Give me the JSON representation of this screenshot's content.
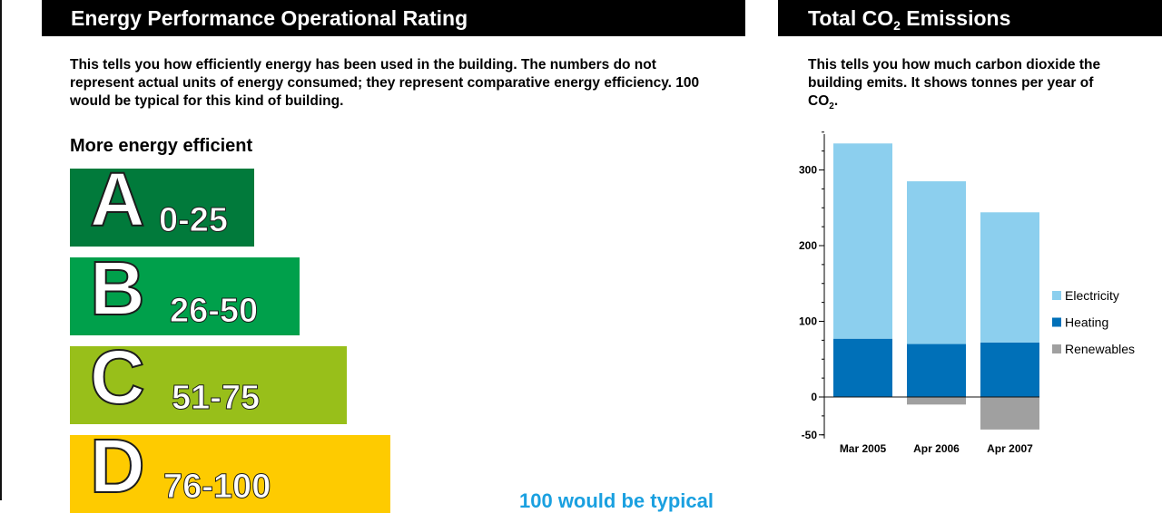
{
  "rating_panel": {
    "title": "Energy Performance Operational Rating",
    "description": "This tells you how efficiently energy has been used in the building. The numbers do not represent actual units of energy consumed; they represent comparative energy efficiency. 100 would be typical for this kind of building.",
    "more_efficient_label": "More energy efficient",
    "bands": [
      {
        "letter": "A",
        "range": "0-25",
        "color": "#017a3b"
      },
      {
        "letter": "B",
        "range": "26-50",
        "color": "#00a04b"
      },
      {
        "letter": "C",
        "range": "51-75",
        "color": "#98bf1a"
      },
      {
        "letter": "D",
        "range": "76-100",
        "color": "#fecb00"
      }
    ],
    "typical_note": "100 would be typical"
  },
  "emissions_panel": {
    "title_main": "Total CO",
    "title_sub": "2",
    "title_end": " Emissions",
    "description_main": "This tells you how much carbon dioxide the building emits. It shows tonnes per year of CO",
    "description_sub": "2",
    "description_end": "."
  },
  "chart_data": {
    "type": "bar",
    "stacked": true,
    "categories": [
      "Mar 2005",
      "Apr 2006",
      "Apr 2007"
    ],
    "series": [
      {
        "name": "Heating",
        "color": "#0070b8",
        "values": [
          77,
          70,
          72
        ]
      },
      {
        "name": "Electricity",
        "color": "#8ccfee",
        "values": [
          258,
          215,
          172
        ]
      },
      {
        "name": "Renewables",
        "color": "#a0a0a0",
        "values": [
          0,
          -10,
          -43
        ]
      }
    ],
    "legend_order": [
      "Electricity",
      "Heating",
      "Renewables"
    ],
    "legend_position": "right",
    "yticks": [
      300,
      200,
      100,
      0,
      -50
    ],
    "ylim": [
      -50,
      350
    ],
    "grid": false
  }
}
